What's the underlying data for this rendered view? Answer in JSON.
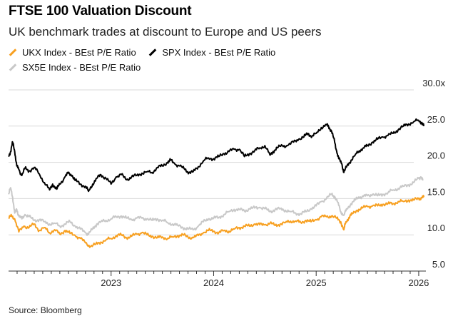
{
  "title": "FTSE 100 Valuation Discount",
  "subtitle": "UK benchmark trades at discount to Europe and US peers",
  "source": "Source: Bloomberg",
  "colors": {
    "ukx": "#F7A021",
    "spx": "#000000",
    "sx5e": "#C8C8C8",
    "grid": "#D9D9D9",
    "axis": "#333333"
  },
  "chart_data": {
    "type": "line",
    "title": "FTSE 100 Valuation Discount",
    "xlabel": "",
    "ylabel": "",
    "ylim": [
      5,
      30
    ],
    "xlim": [
      2022.0,
      2026.07
    ],
    "yticks": [
      {
        "value": 30,
        "label": "30.0x"
      },
      {
        "value": 25,
        "label": "25.0"
      },
      {
        "value": 20,
        "label": "20.0"
      },
      {
        "value": 15,
        "label": "15.0"
      },
      {
        "value": 10,
        "label": "10.0"
      },
      {
        "value": 5,
        "label": "5.0"
      }
    ],
    "xticks": [
      {
        "value": 2023,
        "label": "2023"
      },
      {
        "value": 2024,
        "label": "2024"
      },
      {
        "value": 2025,
        "label": "2025"
      },
      {
        "value": 2026,
        "label": "2026"
      }
    ],
    "legend_position": "top-left",
    "series": [
      {
        "name": "UKX Index - BEst P/E Ratio",
        "color": "#F7A021",
        "points": [
          [
            2022.0,
            12.3
          ],
          [
            2022.03,
            12.6
          ],
          [
            2022.06,
            12.2
          ],
          [
            2022.1,
            10.4
          ],
          [
            2022.15,
            11.2
          ],
          [
            2022.2,
            11.0
          ],
          [
            2022.25,
            11.5
          ],
          [
            2022.3,
            10.6
          ],
          [
            2022.35,
            11.0
          ],
          [
            2022.4,
            10.3
          ],
          [
            2022.45,
            10.7
          ],
          [
            2022.5,
            10.1
          ],
          [
            2022.55,
            10.6
          ],
          [
            2022.6,
            10.2
          ],
          [
            2022.65,
            9.9
          ],
          [
            2022.7,
            9.5
          ],
          [
            2022.75,
            8.9
          ],
          [
            2022.8,
            8.4
          ],
          [
            2022.85,
            8.7
          ],
          [
            2022.9,
            9.0
          ],
          [
            2022.95,
            9.3
          ],
          [
            2023.0,
            9.5
          ],
          [
            2023.05,
            9.9
          ],
          [
            2023.1,
            10.0
          ],
          [
            2023.15,
            9.6
          ],
          [
            2023.2,
            9.8
          ],
          [
            2023.25,
            10.1
          ],
          [
            2023.3,
            10.3
          ],
          [
            2023.35,
            10.0
          ],
          [
            2023.4,
            9.8
          ],
          [
            2023.45,
            9.6
          ],
          [
            2023.5,
            9.7
          ],
          [
            2023.55,
            9.5
          ],
          [
            2023.6,
            9.7
          ],
          [
            2023.65,
            9.9
          ],
          [
            2023.7,
            10.0
          ],
          [
            2023.75,
            9.7
          ],
          [
            2023.8,
            9.6
          ],
          [
            2023.85,
            9.9
          ],
          [
            2023.9,
            10.3
          ],
          [
            2023.95,
            10.6
          ],
          [
            2024.0,
            10.5
          ],
          [
            2024.05,
            10.3
          ],
          [
            2024.1,
            10.6
          ],
          [
            2024.15,
            10.5
          ],
          [
            2024.2,
            10.8
          ],
          [
            2024.25,
            11.0
          ],
          [
            2024.3,
            11.2
          ],
          [
            2024.35,
            11.2
          ],
          [
            2024.4,
            11.5
          ],
          [
            2024.45,
            11.4
          ],
          [
            2024.5,
            11.4
          ],
          [
            2024.55,
            11.6
          ],
          [
            2024.6,
            11.3
          ],
          [
            2024.65,
            11.5
          ],
          [
            2024.7,
            11.7
          ],
          [
            2024.75,
            11.9
          ],
          [
            2024.8,
            11.9
          ],
          [
            2024.85,
            11.7
          ],
          [
            2024.9,
            12.0
          ],
          [
            2024.95,
            11.8
          ],
          [
            2025.0,
            12.1
          ],
          [
            2025.05,
            12.5
          ],
          [
            2025.1,
            12.5
          ],
          [
            2025.15,
            12.6
          ],
          [
            2025.2,
            12.3
          ],
          [
            2025.24,
            11.8
          ],
          [
            2025.27,
            10.7
          ],
          [
            2025.29,
            11.8
          ],
          [
            2025.32,
            12.4
          ],
          [
            2025.35,
            12.9
          ],
          [
            2025.4,
            13.4
          ],
          [
            2025.45,
            13.7
          ],
          [
            2025.5,
            13.9
          ],
          [
            2025.55,
            14.0
          ],
          [
            2025.6,
            14.0
          ],
          [
            2025.65,
            14.2
          ],
          [
            2025.7,
            14.3
          ],
          [
            2025.75,
            14.3
          ],
          [
            2025.8,
            14.6
          ],
          [
            2025.85,
            14.6
          ],
          [
            2025.9,
            14.8
          ],
          [
            2025.95,
            14.8
          ],
          [
            2026.0,
            15.0
          ],
          [
            2026.03,
            15.1
          ],
          [
            2026.05,
            15.2
          ]
        ]
      },
      {
        "name": "SPX Index - BEst P/E Ratio",
        "color": "#000000",
        "points": [
          [
            2022.0,
            20.9
          ],
          [
            2022.02,
            21.5
          ],
          [
            2022.04,
            22.8
          ],
          [
            2022.06,
            21.5
          ],
          [
            2022.08,
            19.5
          ],
          [
            2022.1,
            19.0
          ],
          [
            2022.13,
            18.2
          ],
          [
            2022.16,
            19.2
          ],
          [
            2022.2,
            18.8
          ],
          [
            2022.25,
            19.3
          ],
          [
            2022.3,
            18.4
          ],
          [
            2022.35,
            17.2
          ],
          [
            2022.4,
            16.2
          ],
          [
            2022.43,
            17.0
          ],
          [
            2022.47,
            16.3
          ],
          [
            2022.5,
            17.0
          ],
          [
            2022.55,
            18.0
          ],
          [
            2022.58,
            18.5
          ],
          [
            2022.62,
            18.2
          ],
          [
            2022.65,
            17.5
          ],
          [
            2022.7,
            17.0
          ],
          [
            2022.75,
            16.7
          ],
          [
            2022.78,
            16.0
          ],
          [
            2022.82,
            17.0
          ],
          [
            2022.86,
            17.8
          ],
          [
            2022.9,
            18.3
          ],
          [
            2022.95,
            17.8
          ],
          [
            2023.0,
            17.0
          ],
          [
            2023.05,
            18.0
          ],
          [
            2023.1,
            18.3
          ],
          [
            2023.15,
            17.6
          ],
          [
            2023.2,
            18.0
          ],
          [
            2023.25,
            18.2
          ],
          [
            2023.3,
            18.5
          ],
          [
            2023.35,
            18.7
          ],
          [
            2023.4,
            18.6
          ],
          [
            2023.45,
            19.3
          ],
          [
            2023.5,
            19.5
          ],
          [
            2023.55,
            20.0
          ],
          [
            2023.58,
            20.3
          ],
          [
            2023.62,
            19.8
          ],
          [
            2023.67,
            19.5
          ],
          [
            2023.72,
            19.0
          ],
          [
            2023.76,
            18.6
          ],
          [
            2023.8,
            18.7
          ],
          [
            2023.85,
            19.4
          ],
          [
            2023.9,
            20.2
          ],
          [
            2023.95,
            20.6
          ],
          [
            2024.0,
            20.5
          ],
          [
            2024.05,
            20.8
          ],
          [
            2024.1,
            21.2
          ],
          [
            2024.15,
            21.5
          ],
          [
            2024.2,
            21.8
          ],
          [
            2024.25,
            21.8
          ],
          [
            2024.3,
            20.8
          ],
          [
            2024.35,
            21.2
          ],
          [
            2024.4,
            21.6
          ],
          [
            2024.45,
            22.0
          ],
          [
            2024.5,
            22.3
          ],
          [
            2024.55,
            21.0
          ],
          [
            2024.58,
            21.5
          ],
          [
            2024.62,
            22.0
          ],
          [
            2024.67,
            22.3
          ],
          [
            2024.72,
            22.3
          ],
          [
            2024.78,
            22.8
          ],
          [
            2024.83,
            23.2
          ],
          [
            2024.88,
            23.5
          ],
          [
            2024.92,
            24.0
          ],
          [
            2024.96,
            23.6
          ],
          [
            2025.0,
            24.0
          ],
          [
            2025.05,
            24.8
          ],
          [
            2025.1,
            25.2
          ],
          [
            2025.12,
            25.0
          ],
          [
            2025.15,
            24.3
          ],
          [
            2025.18,
            22.8
          ],
          [
            2025.2,
            21.5
          ],
          [
            2025.22,
            20.5
          ],
          [
            2025.25,
            19.8
          ],
          [
            2025.27,
            18.6
          ],
          [
            2025.3,
            19.5
          ],
          [
            2025.34,
            20.3
          ],
          [
            2025.38,
            21.0
          ],
          [
            2025.42,
            21.6
          ],
          [
            2025.46,
            22.0
          ],
          [
            2025.5,
            22.3
          ],
          [
            2025.55,
            22.8
          ],
          [
            2025.6,
            23.2
          ],
          [
            2025.65,
            23.5
          ],
          [
            2025.7,
            23.7
          ],
          [
            2025.75,
            24.0
          ],
          [
            2025.8,
            24.5
          ],
          [
            2025.85,
            25.0
          ],
          [
            2025.9,
            25.3
          ],
          [
            2025.95,
            25.6
          ],
          [
            2026.0,
            25.8
          ],
          [
            2026.03,
            25.5
          ],
          [
            2026.05,
            25.0
          ]
        ]
      },
      {
        "name": "SX5E Index - BEst P/E Ratio",
        "color": "#C8C8C8",
        "points": [
          [
            2022.0,
            15.6
          ],
          [
            2022.02,
            16.5
          ],
          [
            2022.04,
            15.2
          ],
          [
            2022.06,
            13.0
          ],
          [
            2022.08,
            13.5
          ],
          [
            2022.1,
            12.6
          ],
          [
            2022.13,
            12.2
          ],
          [
            2022.16,
            12.8
          ],
          [
            2022.2,
            12.5
          ],
          [
            2022.25,
            12.0
          ],
          [
            2022.3,
            12.1
          ],
          [
            2022.35,
            11.8
          ],
          [
            2022.4,
            11.5
          ],
          [
            2022.45,
            11.6
          ],
          [
            2022.5,
            11.2
          ],
          [
            2022.55,
            11.5
          ],
          [
            2022.6,
            11.8
          ],
          [
            2022.65,
            11.2
          ],
          [
            2022.7,
            10.8
          ],
          [
            2022.75,
            10.3
          ],
          [
            2022.78,
            10.1
          ],
          [
            2022.82,
            10.8
          ],
          [
            2022.86,
            11.5
          ],
          [
            2022.9,
            11.8
          ],
          [
            2022.95,
            12.0
          ],
          [
            2023.0,
            12.2
          ],
          [
            2023.05,
            12.5
          ],
          [
            2023.1,
            12.6
          ],
          [
            2023.15,
            12.3
          ],
          [
            2023.2,
            12.1
          ],
          [
            2023.25,
            12.3
          ],
          [
            2023.3,
            12.3
          ],
          [
            2023.35,
            12.2
          ],
          [
            2023.4,
            12.0
          ],
          [
            2023.45,
            12.2
          ],
          [
            2023.5,
            12.0
          ],
          [
            2023.55,
            11.7
          ],
          [
            2023.6,
            11.5
          ],
          [
            2023.65,
            11.3
          ],
          [
            2023.7,
            11.0
          ],
          [
            2023.75,
            10.8
          ],
          [
            2023.8,
            10.7
          ],
          [
            2023.85,
            11.2
          ],
          [
            2023.9,
            11.8
          ],
          [
            2023.95,
            12.2
          ],
          [
            2024.0,
            12.3
          ],
          [
            2024.05,
            12.4
          ],
          [
            2024.1,
            12.8
          ],
          [
            2024.15,
            13.2
          ],
          [
            2024.2,
            13.5
          ],
          [
            2024.25,
            13.5
          ],
          [
            2024.3,
            13.3
          ],
          [
            2024.35,
            13.6
          ],
          [
            2024.4,
            13.7
          ],
          [
            2024.45,
            13.8
          ],
          [
            2024.5,
            13.6
          ],
          [
            2024.55,
            13.2
          ],
          [
            2024.6,
            13.5
          ],
          [
            2024.65,
            13.6
          ],
          [
            2024.7,
            13.4
          ],
          [
            2024.75,
            13.2
          ],
          [
            2024.8,
            13.0
          ],
          [
            2024.85,
            12.9
          ],
          [
            2024.9,
            13.2
          ],
          [
            2024.95,
            13.6
          ],
          [
            2025.0,
            14.0
          ],
          [
            2025.05,
            14.6
          ],
          [
            2025.1,
            15.0
          ],
          [
            2025.15,
            15.6
          ],
          [
            2025.18,
            15.3
          ],
          [
            2025.21,
            14.5
          ],
          [
            2025.24,
            13.2
          ],
          [
            2025.27,
            12.7
          ],
          [
            2025.3,
            13.6
          ],
          [
            2025.34,
            14.3
          ],
          [
            2025.38,
            14.8
          ],
          [
            2025.42,
            15.2
          ],
          [
            2025.46,
            15.3
          ],
          [
            2025.5,
            15.4
          ],
          [
            2025.55,
            15.6
          ],
          [
            2025.6,
            15.4
          ],
          [
            2025.65,
            15.6
          ],
          [
            2025.7,
            15.8
          ],
          [
            2025.75,
            16.2
          ],
          [
            2025.8,
            16.4
          ],
          [
            2025.85,
            16.7
          ],
          [
            2025.9,
            16.9
          ],
          [
            2025.95,
            17.2
          ],
          [
            2026.0,
            17.8
          ],
          [
            2026.02,
            18.0
          ],
          [
            2026.04,
            17.5
          ]
        ]
      }
    ]
  }
}
